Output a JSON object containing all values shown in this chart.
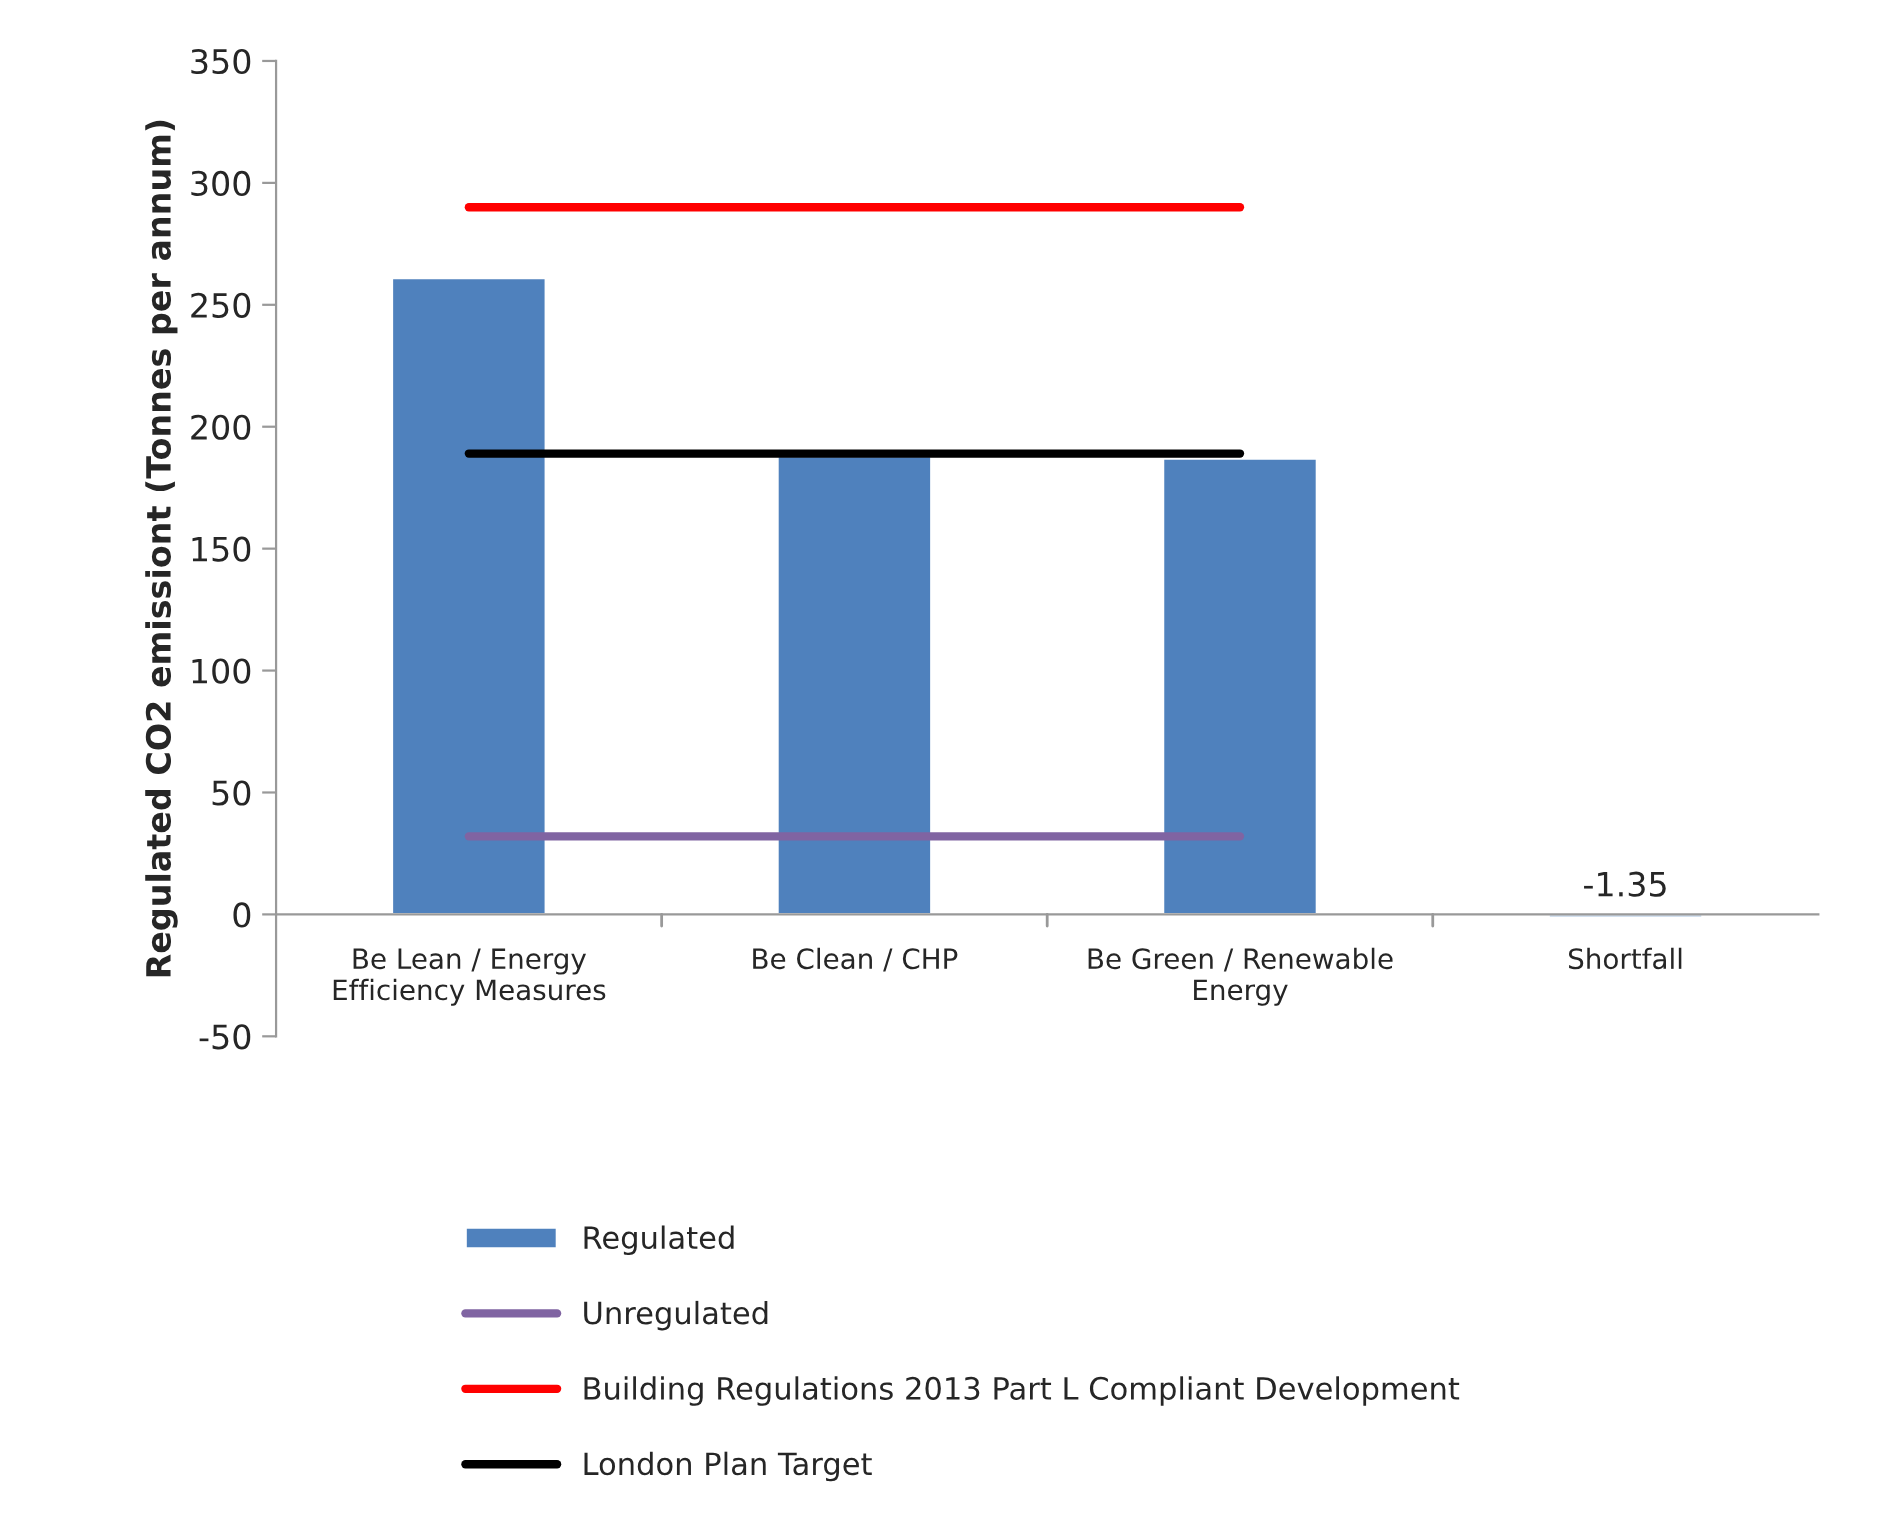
{
  "chart_data": {
    "type": "bar",
    "ylabel": "Regulated CO2 emissiont (Tonnes per annum)",
    "categories": [
      "Be Lean / Energy\nEfficiency Measures",
      "Be Clean / CHP",
      "Be Green / Renewable\nEnergy",
      "Shortfall"
    ],
    "series": [
      {
        "name": "Regulated",
        "color": "#4f81bd",
        "values": [
          261,
          188,
          187,
          -1.35
        ],
        "value_labels": [
          null,
          null,
          null,
          "-1.35"
        ]
      },
      {
        "name": "Unregulated",
        "type": "line",
        "color": "#8064a2",
        "values": [
          32,
          32,
          32,
          null
        ]
      },
      {
        "name": "Building Regulations 2013 Part L Compliant Development",
        "type": "line",
        "color": "#ff0000",
        "values": [
          290,
          290,
          290,
          null
        ]
      },
      {
        "name": "London Plan Target",
        "type": "line",
        "color": "#000000",
        "values": [
          189,
          189,
          189,
          null
        ]
      }
    ],
    "ylim": [
      -50,
      350
    ],
    "yticks": [
      -50,
      0,
      50,
      100,
      150,
      200,
      250,
      300,
      350
    ],
    "grid": false,
    "legend": "bottom"
  }
}
